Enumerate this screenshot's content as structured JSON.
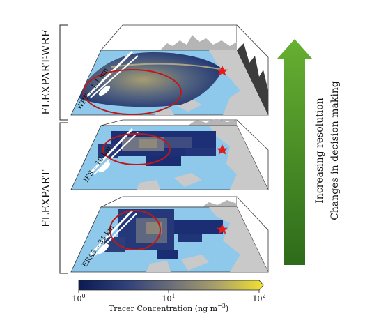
{
  "group_labels": {
    "top": "FLEXPART-WRF",
    "bottom": "FLEXPART"
  },
  "panels": [
    {
      "label": "WRF – 1.1 km"
    },
    {
      "label": "IFS – 10 km"
    },
    {
      "label": "ERA5 – 31 km"
    }
  ],
  "arrow": {
    "line1": "Increasing resolution",
    "line2": "Changes in decision making",
    "color_top": "#66b032",
    "color_bottom": "#2e6b1a"
  },
  "colorbar": {
    "tick_labels": [
      "10",
      "10",
      "10"
    ],
    "tick_exponents": [
      "0",
      "1",
      "2"
    ],
    "label_main": "Tracer Concentration (ng m",
    "label_sup": "−3",
    "label_end": ")",
    "scale": "log",
    "range": [
      1,
      100
    ],
    "colormap": [
      "#0b1a55",
      "#2e3f7a",
      "#6b6e78",
      "#a9a06a",
      "#f2e130"
    ]
  },
  "colors": {
    "sea": "#8ec9ec",
    "land": "#c9c9c9",
    "plume_dark": "#162a6b",
    "circle": "#c01818",
    "star": "#e21b1b",
    "terrain": "#3c3c3c"
  }
}
